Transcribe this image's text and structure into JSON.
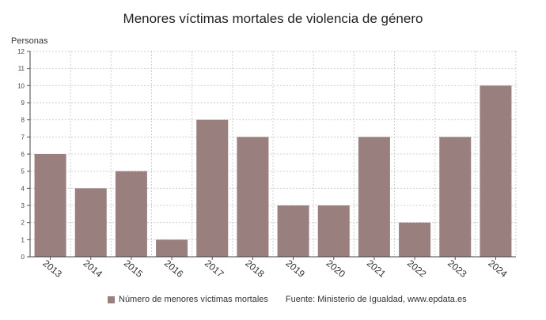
{
  "chart_data": {
    "type": "bar",
    "title": "Menores víctimas mortales de violencia de género",
    "ylabel": "Personas",
    "xlabel": "",
    "categories": [
      "2013",
      "2014",
      "2015",
      "2016",
      "2017",
      "2018",
      "2019",
      "2020",
      "2021",
      "2022",
      "2023",
      "2024"
    ],
    "series": [
      {
        "name": "Número de menores víctimas mortales",
        "values": [
          6,
          4,
          5,
          1,
          8,
          7,
          3,
          3,
          7,
          2,
          7,
          10
        ]
      }
    ],
    "ylim": [
      0,
      12
    ],
    "yticks": [
      0,
      1,
      2,
      3,
      4,
      5,
      6,
      7,
      8,
      9,
      10,
      11,
      12
    ],
    "grid": true,
    "legend_position": "bottom",
    "source_text": "Fuente: Ministerio de Igualdad, www.epdata.es",
    "bar_color": "#9a7f7f"
  }
}
